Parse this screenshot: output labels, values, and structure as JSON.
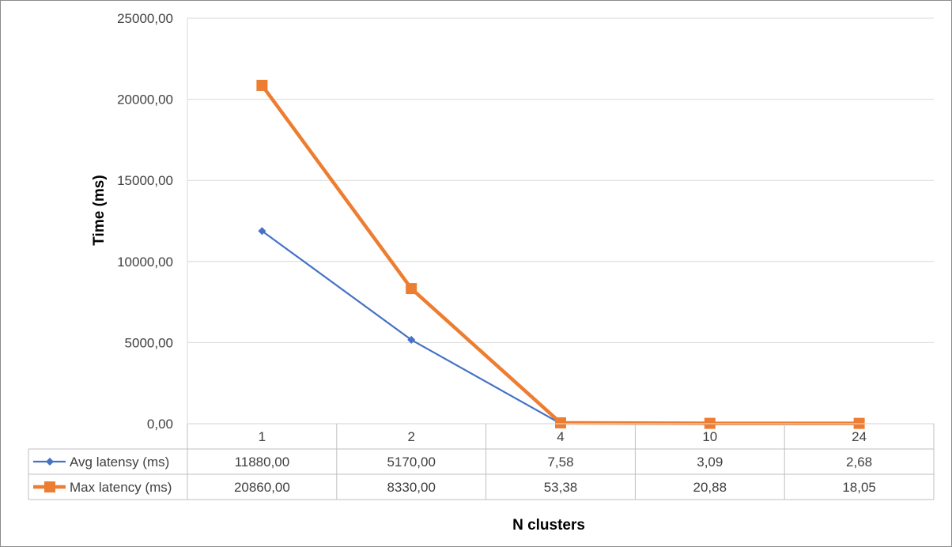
{
  "chart_data": {
    "type": "line",
    "title": "",
    "xlabel": "N clusters",
    "ylabel": "Time (ms)",
    "ylim": [
      0,
      25000
    ],
    "ytick_step": 5000,
    "ytick_labels": [
      "0,00",
      "5000,00",
      "10000,00",
      "15000,00",
      "20000,00",
      "25000,00"
    ],
    "grid": true,
    "legend": "data-table",
    "categories": [
      "1",
      "2",
      "4",
      "10",
      "24"
    ],
    "series": [
      {
        "name": "Avg latensy (ms)",
        "marker": "diamond",
        "color": "#4472c4",
        "values": [
          11880.0,
          5170.0,
          7.58,
          3.09,
          2.68
        ],
        "value_labels": [
          "11880,00",
          "5170,00",
          "7,58",
          "3,09",
          "2,68"
        ]
      },
      {
        "name": "Max latency (ms)",
        "marker": "square",
        "color": "#ed7d31",
        "values": [
          20860.0,
          8330.0,
          53.38,
          20.88,
          18.05
        ],
        "value_labels": [
          "20860,00",
          "8330,00",
          "53,38",
          "20,88",
          "18,05"
        ]
      }
    ]
  }
}
